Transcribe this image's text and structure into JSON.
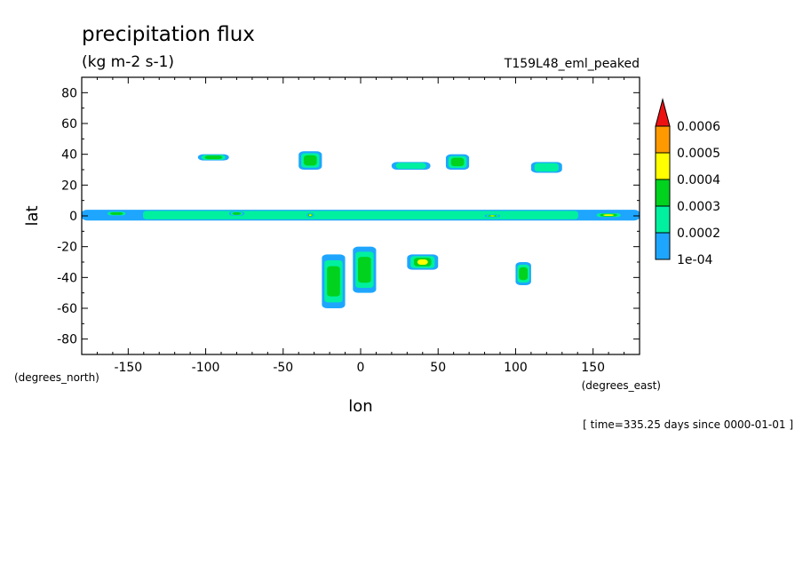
{
  "chart_data": {
    "type": "heatmap",
    "title": "precipitation flux",
    "units": "(kg m-2 s-1)",
    "experiment": "T159L48_eml_peaked",
    "xlabel": "lon",
    "ylabel": "lat",
    "x_units": "(degrees_east)",
    "y_units": "(degrees_north)",
    "xlim": [
      -180,
      180
    ],
    "ylim": [
      -90,
      90
    ],
    "x_ticks": [
      -150,
      -100,
      -50,
      0,
      50,
      100,
      150
    ],
    "y_ticks": [
      80,
      60,
      40,
      20,
      0,
      -20,
      -40,
      -60,
      -80
    ],
    "time_label": "[ time=335.25 days since 0000-01-01 ]",
    "colorbar": {
      "levels": [
        "1e-04",
        "0.0002",
        "0.0003",
        "0.0004",
        "0.0005",
        "0.0006"
      ],
      "colors": [
        "#1ea6ff",
        "#00f0a0",
        "#00d21e",
        "#ffff00",
        "#ff9900",
        "#ee1111"
      ],
      "extend": "max"
    },
    "features": [
      {
        "lon": [
          -180,
          180
        ],
        "lat": [
          -3,
          4
        ],
        "level": 2,
        "kind": "equatorial band"
      },
      {
        "lon": [
          -165,
          -150
        ],
        "lat": [
          0,
          3
        ],
        "level": 3
      },
      {
        "lon": [
          -85,
          -75
        ],
        "lat": [
          0,
          3
        ],
        "level": 3
      },
      {
        "lon": [
          -35,
          -30
        ],
        "lat": [
          -1,
          2
        ],
        "level": 4
      },
      {
        "lon": [
          80,
          90
        ],
        "lat": [
          -1,
          1
        ],
        "level": 6
      },
      {
        "lon": [
          150,
          170
        ],
        "lat": [
          -1,
          2
        ],
        "level": 6
      },
      {
        "lon": [
          -105,
          -85
        ],
        "lat": [
          36,
          40
        ],
        "level": 3
      },
      {
        "lon": [
          -40,
          -25
        ],
        "lat": [
          30,
          42
        ],
        "level": 3
      },
      {
        "lon": [
          20,
          45
        ],
        "lat": [
          30,
          35
        ],
        "level": 2
      },
      {
        "lon": [
          55,
          70
        ],
        "lat": [
          30,
          40
        ],
        "level": 3
      },
      {
        "lon": [
          110,
          130
        ],
        "lat": [
          28,
          35
        ],
        "level": 2
      },
      {
        "lon": [
          -25,
          -10
        ],
        "lat": [
          -60,
          -25
        ],
        "level": 3
      },
      {
        "lon": [
          -5,
          10
        ],
        "lat": [
          -50,
          -20
        ],
        "level": 3
      },
      {
        "lon": [
          30,
          50
        ],
        "lat": [
          -35,
          -25
        ],
        "level": 4
      },
      {
        "lon": [
          100,
          110
        ],
        "lat": [
          -45,
          -30
        ],
        "level": 3
      }
    ]
  }
}
